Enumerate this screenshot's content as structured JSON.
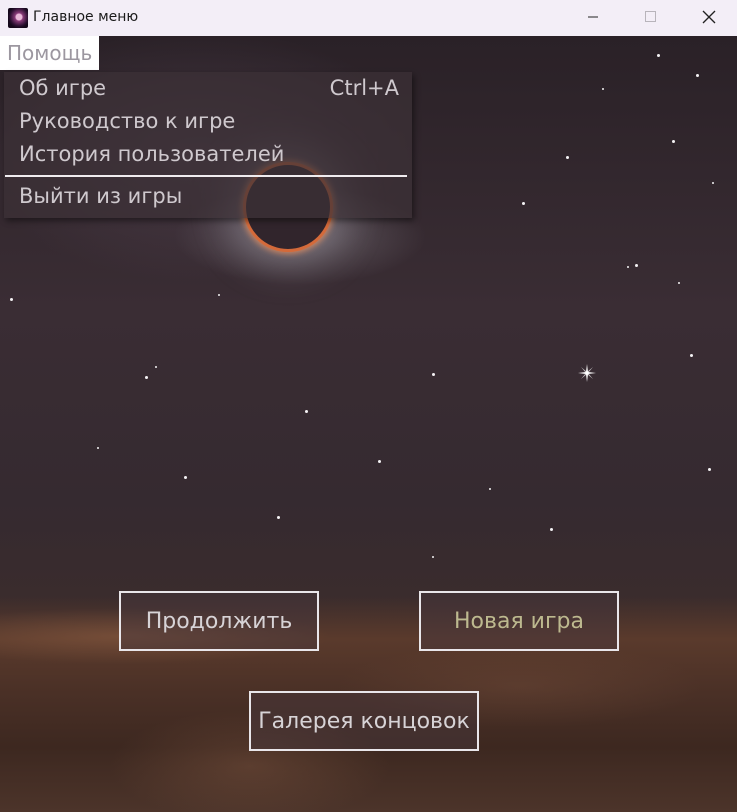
{
  "window": {
    "title": "Главное меню",
    "icon": "galaxy-app-icon"
  },
  "menubar": {
    "help_label": "Помощь"
  },
  "help_menu": {
    "items": [
      {
        "label": "Об игре",
        "shortcut": "Ctrl+A"
      },
      {
        "label": "Руководство к игре",
        "shortcut": ""
      },
      {
        "label": "История пользователей",
        "shortcut": ""
      },
      {
        "label": "Выйти из игры",
        "shortcut": ""
      }
    ]
  },
  "buttons": {
    "continue": "Продолжить",
    "new_game": "Новая игра",
    "gallery": "Галерея концовок"
  },
  "colors": {
    "menu_text": "#cfc9ce",
    "new_game_text": "#bdb98f",
    "button_border": "#e9e6ea"
  }
}
